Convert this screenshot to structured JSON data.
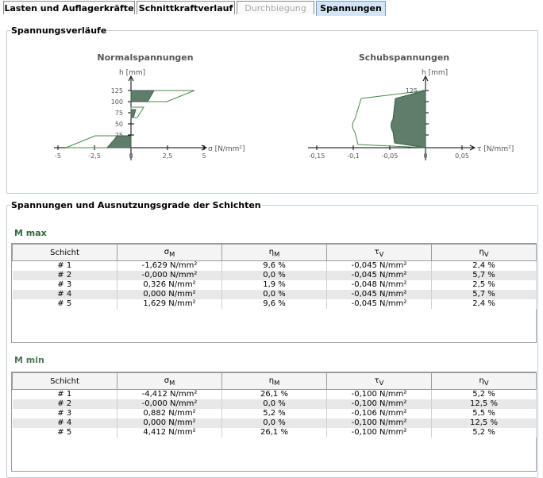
{
  "tabs": [
    {
      "label": "Lasten und Auflagerkräfte",
      "state": "normal"
    },
    {
      "label": "Schnittkraftverlauf",
      "state": "normal"
    },
    {
      "label": "Durchbiegung",
      "state": "disabled"
    },
    {
      "label": "Spannungen",
      "state": "active"
    }
  ],
  "diagrams": {
    "legend": "Spannungsverläufe",
    "normal": {
      "title": "Normalspannungen",
      "ylabel": "h [mm]",
      "xlabel": "σ [N/mm²]",
      "xticks": [
        "-5",
        "-2,5",
        "0",
        "2,5",
        "5"
      ],
      "yticks": [
        "125",
        "100",
        "75",
        "50",
        "25"
      ]
    },
    "shear": {
      "title": "Schubspannungen",
      "ylabel": "h [mm]",
      "xlabel": "τ [N/mm²]",
      "xticks": [
        "-0,15",
        "-0,1",
        "-0,05",
        "0",
        "0,05"
      ],
      "ytick_top": "125"
    }
  },
  "layers_section": {
    "legend": "Spannungen und Ausnutzungsgrade der Schichten",
    "columns": [
      "Schicht",
      "σ",
      "M",
      "η",
      "M",
      "τ",
      "V",
      "η",
      "V"
    ],
    "mmax": {
      "title": "M max",
      "rows": [
        [
          "# 1",
          "-1,629 N/mm²",
          "9,6 %",
          "-0,045 N/mm²",
          "2,4 %"
        ],
        [
          "# 2",
          "-0,000 N/mm²",
          "0,0 %",
          "-0,045 N/mm²",
          "5,7 %"
        ],
        [
          "# 3",
          "0,326 N/mm²",
          "1,9 %",
          "-0,048 N/mm²",
          "2,5 %"
        ],
        [
          "# 4",
          "0,000 N/mm²",
          "0,0 %",
          "-0,045 N/mm²",
          "5,7 %"
        ],
        [
          "# 5",
          "1,629 N/mm²",
          "9,6 %",
          "-0,045 N/mm²",
          "2,4 %"
        ]
      ]
    },
    "mmin": {
      "title": "M min",
      "rows": [
        [
          "# 1",
          "-4,412 N/mm²",
          "26,1 %",
          "-0,100 N/mm²",
          "5,2 %"
        ],
        [
          "# 2",
          "-0,000 N/mm²",
          "0,0 %",
          "-0,100 N/mm²",
          "12,5 %"
        ],
        [
          "# 3",
          "0,882 N/mm²",
          "5,2 %",
          "-0,106 N/mm²",
          "5,5 %"
        ],
        [
          "# 4",
          "0,000 N/mm²",
          "0,0 %",
          "-0,100 N/mm²",
          "12,5 %"
        ],
        [
          "# 5",
          "4,412 N/mm²",
          "26,1 %",
          "-0,100 N/mm²",
          "5,2 %"
        ]
      ]
    }
  },
  "colors": {
    "fill": "#5e7e6a",
    "outline": "#4a8a4a",
    "tab_active": "#d3e4f6",
    "row_even": "#e8e8e8"
  }
}
